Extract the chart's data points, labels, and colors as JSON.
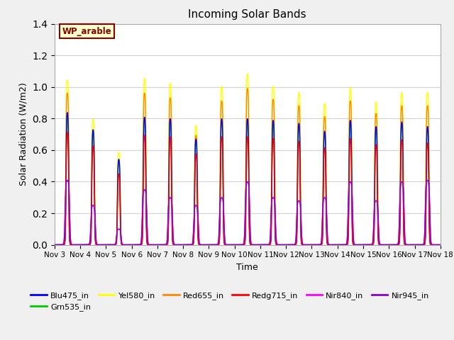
{
  "title": "Incoming Solar Bands",
  "xlabel": "Time",
  "ylabel": "Solar Radiation (W/m2)",
  "ylim": [
    0,
    1.4
  ],
  "xlim_days": [
    3,
    18
  ],
  "x_ticks": [
    3,
    4,
    5,
    6,
    7,
    8,
    9,
    10,
    11,
    12,
    13,
    14,
    15,
    16,
    17,
    18
  ],
  "x_tick_labels": [
    "Nov 3",
    "Nov 4",
    "Nov 5",
    "Nov 6",
    "Nov 7",
    "Nov 8",
    "Nov 9",
    "Nov 10",
    "Nov 11",
    "Nov 12",
    "Nov 13",
    "Nov 14",
    "Nov 15",
    "Nov 16",
    "Nov 17",
    "Nov 18"
  ],
  "series": {
    "Blu475_in": {
      "color": "#0000ff",
      "lw": 1.0
    },
    "Grn535_in": {
      "color": "#00cc00",
      "lw": 1.0
    },
    "Yel580_in": {
      "color": "#ffff00",
      "lw": 1.0
    },
    "Red655_in": {
      "color": "#ff8800",
      "lw": 1.0
    },
    "Redg715_in": {
      "color": "#ff0000",
      "lw": 1.0
    },
    "Nir840_in": {
      "color": "#ff00ff",
      "lw": 1.0
    },
    "Nir945_in": {
      "color": "#8800cc",
      "lw": 1.0
    }
  },
  "peak_days": [
    3,
    4,
    5,
    6,
    7,
    8,
    9,
    10,
    11,
    12,
    13,
    14,
    15,
    16,
    17
  ],
  "peak_heights_yel": [
    1.05,
    0.8,
    0.59,
    1.06,
    1.03,
    0.76,
    1.01,
    1.09,
    1.01,
    0.97,
    0.9,
    1.0,
    0.91,
    0.97,
    0.97
  ],
  "peak_heights_red": [
    0.97,
    0.73,
    0.54,
    0.97,
    0.94,
    0.7,
    0.92,
    1.0,
    0.93,
    0.89,
    0.82,
    0.92,
    0.84,
    0.89,
    0.89
  ],
  "peak_heights_blu": [
    0.85,
    0.74,
    0.55,
    0.82,
    0.81,
    0.68,
    0.81,
    0.81,
    0.8,
    0.78,
    0.73,
    0.8,
    0.76,
    0.79,
    0.76
  ],
  "peak_heights_grn": [
    0.83,
    0.72,
    0.53,
    0.8,
    0.79,
    0.66,
    0.79,
    0.79,
    0.78,
    0.76,
    0.71,
    0.78,
    0.74,
    0.77,
    0.74
  ],
  "peak_heights_rdg": [
    0.73,
    0.64,
    0.46,
    0.71,
    0.7,
    0.59,
    0.7,
    0.7,
    0.69,
    0.67,
    0.63,
    0.69,
    0.65,
    0.68,
    0.66
  ],
  "peak_heights_nir840": [
    0.41,
    0.25,
    0.1,
    0.35,
    0.3,
    0.25,
    0.3,
    0.4,
    0.3,
    0.28,
    0.3,
    0.4,
    0.28,
    0.4,
    0.41
  ],
  "peak_heights_nir945": [
    0.41,
    0.25,
    0.1,
    0.35,
    0.3,
    0.25,
    0.3,
    0.4,
    0.3,
    0.28,
    0.3,
    0.4,
    0.28,
    0.4,
    0.41
  ],
  "annotation_text": "WP_arable",
  "annotation_color": "#8B0000",
  "annotation_bg": "#ffffcc",
  "fig_bg": "#f0f0f0",
  "plot_bg": "#ffffff"
}
